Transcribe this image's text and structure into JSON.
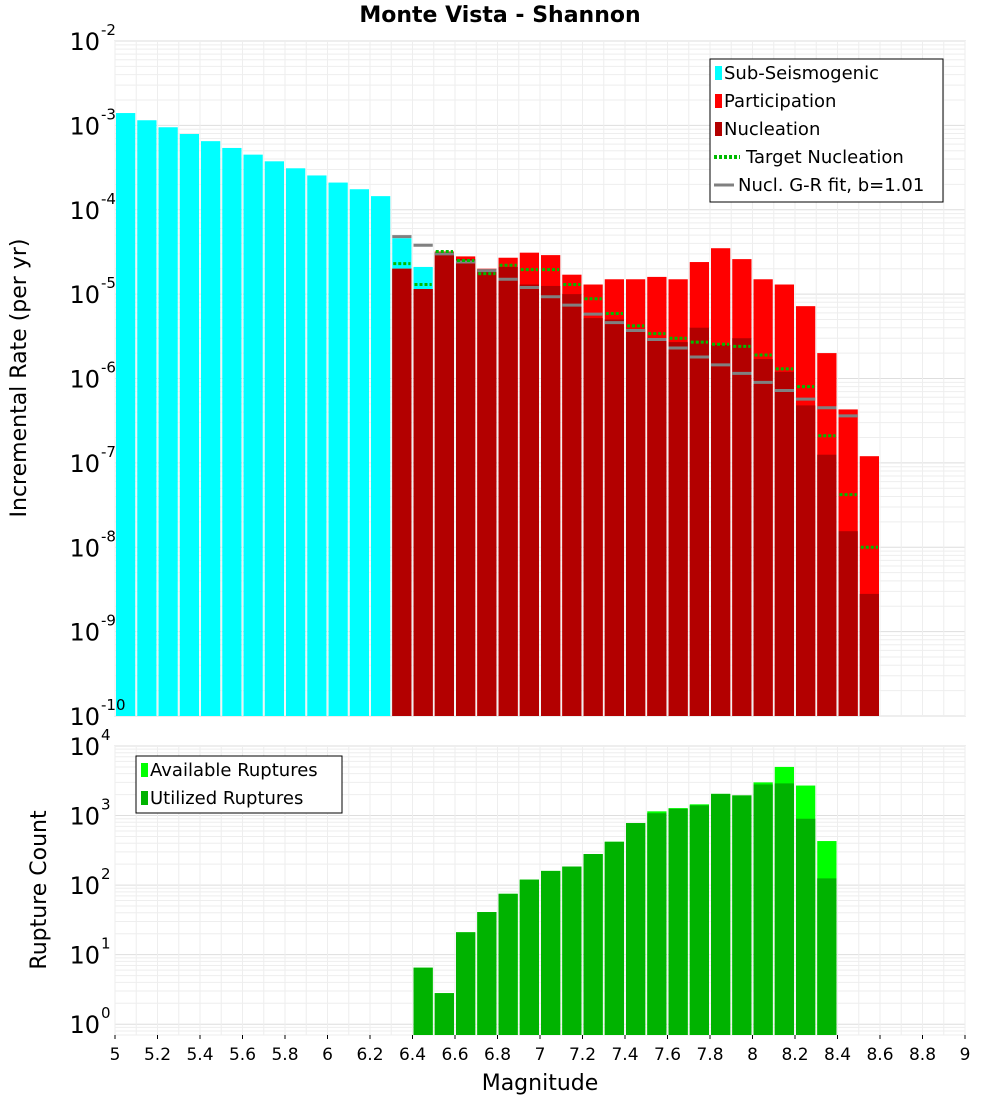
{
  "title": "Monte Vista - Shannon",
  "chart_data": [
    {
      "type": "bar",
      "ylabel": "Incremental Rate (per yr)",
      "yscale": "log",
      "ylim": [
        1e-10,
        0.01
      ],
      "xlim": [
        5,
        9
      ],
      "bin_width": 0.1,
      "legend_position": "top-right",
      "y_tick_labels": [
        {
          "base": "10",
          "exp": "-10",
          "value": 1e-10
        },
        {
          "base": "10",
          "exp": "-9",
          "value": 1e-09
        },
        {
          "base": "10",
          "exp": "-8",
          "value": 1e-08
        },
        {
          "base": "10",
          "exp": "-7",
          "value": 1e-07
        },
        {
          "base": "10",
          "exp": "-6",
          "value": 1e-06
        },
        {
          "base": "10",
          "exp": "-5",
          "value": 1e-05
        },
        {
          "base": "10",
          "exp": "-4",
          "value": 0.0001
        },
        {
          "base": "10",
          "exp": "-3",
          "value": 0.001
        },
        {
          "base": "10",
          "exp": "-2",
          "value": 0.01
        }
      ],
      "legend": [
        {
          "label": "Sub-Seismogenic",
          "color": "#00ffff",
          "style": "box"
        },
        {
          "label": "Participation",
          "color": "#ff0000",
          "style": "box"
        },
        {
          "label": "Nucleation",
          "color": "#b30000",
          "style": "box"
        },
        {
          "label": "Target Nucleation",
          "color": "#00bb00",
          "style": "dotted"
        },
        {
          "label": "Nucl. G-R fit, b=1.01",
          "color": "#808080",
          "style": "line"
        }
      ],
      "series": [
        {
          "name": "Sub-Seismogenic",
          "color": "#00ffff",
          "points": [
            [
              5.05,
              0.0014
            ],
            [
              5.15,
              0.00115
            ],
            [
              5.25,
              0.00095
            ],
            [
              5.35,
              0.00079
            ],
            [
              5.45,
              0.00065
            ],
            [
              5.55,
              0.00054
            ],
            [
              5.65,
              0.00045
            ],
            [
              5.75,
              0.000375
            ],
            [
              5.85,
              0.00031
            ],
            [
              5.95,
              0.000255
            ],
            [
              6.05,
              0.00021
            ],
            [
              6.15,
              0.000175
            ],
            [
              6.25,
              0.000145
            ],
            [
              6.35,
              4.6e-05
            ],
            [
              6.45,
              2.1e-05
            ]
          ]
        },
        {
          "name": "Participation",
          "color": "#ff0000",
          "points": [
            [
              6.35,
              2e-05
            ],
            [
              6.45,
              1.15e-05
            ],
            [
              6.55,
              3.2e-05
            ],
            [
              6.65,
              2.8e-05
            ],
            [
              6.75,
              2e-05
            ],
            [
              6.85,
              2.7e-05
            ],
            [
              6.95,
              3.1e-05
            ],
            [
              7.05,
              2.9e-05
            ],
            [
              7.15,
              1.7e-05
            ],
            [
              7.25,
              1.3e-05
            ],
            [
              7.35,
              1.5e-05
            ],
            [
              7.45,
              1.5e-05
            ],
            [
              7.55,
              1.6e-05
            ],
            [
              7.65,
              1.5e-05
            ],
            [
              7.75,
              2.4e-05
            ],
            [
              7.85,
              3.5e-05
            ],
            [
              7.95,
              2.6e-05
            ],
            [
              8.05,
              1.5e-05
            ],
            [
              8.15,
              1.3e-05
            ],
            [
              8.25,
              7.2e-06
            ],
            [
              8.35,
              2e-06
            ],
            [
              8.45,
              4.3e-07
            ],
            [
              8.55,
              1.2e-07
            ]
          ]
        },
        {
          "name": "Nucleation",
          "color": "#b30000",
          "points": [
            [
              6.35,
              2e-05
            ],
            [
              6.45,
              1.15e-05
            ],
            [
              6.55,
              3.1e-05
            ],
            [
              6.65,
              2.6e-05
            ],
            [
              6.75,
              1.95e-05
            ],
            [
              6.85,
              2.1e-05
            ],
            [
              6.95,
              1.3e-05
            ],
            [
              7.05,
              1.25e-05
            ],
            [
              7.15,
              1e-05
            ],
            [
              7.25,
              5.2e-06
            ],
            [
              7.35,
              5e-06
            ],
            [
              7.45,
              3.6e-06
            ],
            [
              7.55,
              3e-06
            ],
            [
              7.65,
              2.7e-06
            ],
            [
              7.75,
              4e-06
            ],
            [
              7.85,
              2.5e-06
            ],
            [
              7.95,
              3e-06
            ],
            [
              8.05,
              1.7e-06
            ],
            [
              8.15,
              1.2e-06
            ],
            [
              8.25,
              4.8e-07
            ],
            [
              8.35,
              1.25e-07
            ],
            [
              8.45,
              1.55e-08
            ],
            [
              8.55,
              2.8e-09
            ]
          ]
        },
        {
          "name": "Target Nucleation",
          "color": "#00bb00",
          "points": [
            [
              6.35,
              2.3e-05
            ],
            [
              6.45,
              1.3e-05
            ],
            [
              6.55,
              3.2e-05
            ],
            [
              6.65,
              2.5e-05
            ],
            [
              6.75,
              1.75e-05
            ],
            [
              6.85,
              2.2e-05
            ],
            [
              6.95,
              1.95e-05
            ],
            [
              7.05,
              1.95e-05
            ],
            [
              7.15,
              1.3e-05
            ],
            [
              7.25,
              8.8e-06
            ],
            [
              7.35,
              5.9e-06
            ],
            [
              7.45,
              4.2e-06
            ],
            [
              7.55,
              3.4e-06
            ],
            [
              7.65,
              3e-06
            ],
            [
              7.75,
              2.7e-06
            ],
            [
              7.85,
              2.55e-06
            ],
            [
              7.95,
              2.4e-06
            ],
            [
              8.05,
              1.9e-06
            ],
            [
              8.15,
              1.3e-06
            ],
            [
              8.25,
              8e-07
            ],
            [
              8.35,
              2.1e-07
            ],
            [
              8.45,
              4.2e-08
            ],
            [
              8.55,
              1e-08
            ]
          ]
        },
        {
          "name": "Nucl. G-R fit, b=1.01",
          "color": "#808080",
          "points": [
            [
              6.35,
              4.8e-05
            ],
            [
              6.45,
              3.8e-05
            ],
            [
              6.55,
              3e-05
            ],
            [
              6.65,
              2.4e-05
            ],
            [
              6.75,
              1.9e-05
            ],
            [
              6.85,
              1.5e-05
            ],
            [
              6.95,
              1.2e-05
            ],
            [
              7.05,
              9.3e-06
            ],
            [
              7.15,
              7.4e-06
            ],
            [
              7.25,
              5.8e-06
            ],
            [
              7.35,
              4.6e-06
            ],
            [
              7.45,
              3.7e-06
            ],
            [
              7.55,
              2.9e-06
            ],
            [
              7.65,
              2.3e-06
            ],
            [
              7.75,
              1.8e-06
            ],
            [
              7.85,
              1.45e-06
            ],
            [
              7.95,
              1.15e-06
            ],
            [
              8.05,
              9e-07
            ],
            [
              8.15,
              7.2e-07
            ],
            [
              8.25,
              5.7e-07
            ],
            [
              8.35,
              4.5e-07
            ],
            [
              8.45,
              3.6e-07
            ]
          ]
        }
      ]
    },
    {
      "type": "bar",
      "ylabel": "Rupture Count",
      "xlabel": "Magnitude",
      "yscale": "log",
      "ylim": [
        0.7,
        10000
      ],
      "xlim": [
        5,
        9
      ],
      "bin_width": 0.1,
      "legend_position": "top-left",
      "x_tick_labels": [
        "5",
        "5.2",
        "5.4",
        "5.6",
        "5.8",
        "6",
        "6.2",
        "6.4",
        "6.6",
        "6.8",
        "7",
        "7.2",
        "7.4",
        "7.6",
        "7.8",
        "8",
        "8.2",
        "8.4",
        "8.6",
        "8.8",
        "9"
      ],
      "y_tick_labels": [
        {
          "base": "10",
          "exp": "0",
          "value": 1
        },
        {
          "base": "10",
          "exp": "1",
          "value": 10
        },
        {
          "base": "10",
          "exp": "2",
          "value": 100
        },
        {
          "base": "10",
          "exp": "3",
          "value": 1000
        },
        {
          "base": "10",
          "exp": "4",
          "value": 10000
        }
      ],
      "legend": [
        {
          "label": "Available Ruptures",
          "color": "#00ff00",
          "style": "box"
        },
        {
          "label": "Utilized Ruptures",
          "color": "#00b300",
          "style": "box"
        }
      ],
      "series": [
        {
          "name": "Available Ruptures",
          "color": "#00ff00",
          "points": [
            [
              6.45,
              6.5
            ],
            [
              6.55,
              2.8
            ],
            [
              6.65,
              21
            ],
            [
              6.75,
              41
            ],
            [
              6.85,
              75
            ],
            [
              6.95,
              120
            ],
            [
              7.05,
              160
            ],
            [
              7.15,
              185
            ],
            [
              7.25,
              280
            ],
            [
              7.35,
              420
            ],
            [
              7.45,
              780
            ],
            [
              7.55,
              1150
            ],
            [
              7.65,
              1280
            ],
            [
              7.75,
              1450
            ],
            [
              7.85,
              2050
            ],
            [
              7.95,
              1950
            ],
            [
              8.05,
              3000
            ],
            [
              8.15,
              5000
            ],
            [
              8.25,
              2700
            ],
            [
              8.35,
              430
            ]
          ]
        },
        {
          "name": "Utilized Ruptures",
          "color": "#00b300",
          "points": [
            [
              6.45,
              6.5
            ],
            [
              6.55,
              2.8
            ],
            [
              6.65,
              21
            ],
            [
              6.75,
              41
            ],
            [
              6.85,
              75
            ],
            [
              6.95,
              120
            ],
            [
              7.05,
              160
            ],
            [
              7.15,
              185
            ],
            [
              7.25,
              280
            ],
            [
              7.35,
              420
            ],
            [
              7.45,
              780
            ],
            [
              7.55,
              1080
            ],
            [
              7.65,
              1250
            ],
            [
              7.75,
              1400
            ],
            [
              7.85,
              2050
            ],
            [
              7.95,
              1950
            ],
            [
              8.05,
              2800
            ],
            [
              8.15,
              2900
            ],
            [
              8.25,
              900
            ],
            [
              8.35,
              125
            ]
          ]
        }
      ]
    }
  ]
}
